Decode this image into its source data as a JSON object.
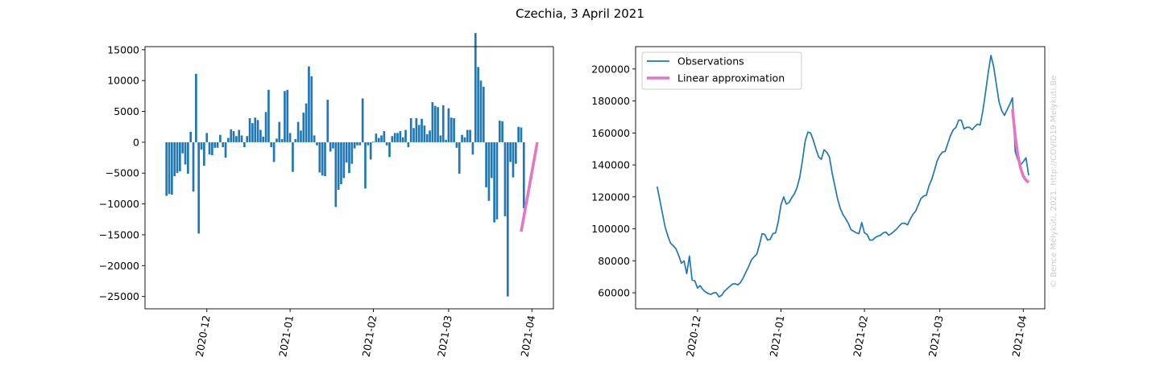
{
  "figure": {
    "title": "Czechia, 3 April 2021",
    "watermark": "© Bence Mélykúti, 2021. http://COVID19.Melykuti.Be"
  },
  "colors": {
    "observations": "#1f77b4",
    "approximation": "#e377c2",
    "watermark": "#cccccc"
  },
  "chart_data": [
    {
      "type": "bar",
      "title": "",
      "xlabel": "",
      "ylabel": "",
      "x_start": "2020-11-16",
      "x_range": [
        "2020-11-08",
        "2021-04-09"
      ],
      "x_ticks": [
        "2020-12",
        "2021-01",
        "2021-02",
        "2021-03",
        "2021-04"
      ],
      "ylim": [
        -27000,
        15500
      ],
      "y_ticks": [
        15000,
        10000,
        5000,
        0,
        -5000,
        -10000,
        -15000,
        -20000,
        -25000
      ],
      "grid": false,
      "series": [
        {
          "name": "",
          "color": "#1f77b4",
          "values": [
            -8700,
            -8400,
            -8500,
            -5500,
            -5000,
            -4700,
            -1800,
            -3600,
            -5100,
            1700,
            -8000,
            11100,
            -14800,
            -1200,
            -3800,
            1500,
            -2000,
            -2100,
            -900,
            -900,
            1200,
            -800,
            -2500,
            700,
            2100,
            1800,
            1000,
            2000,
            1100,
            -800,
            1000,
            3900,
            3100,
            4000,
            3600,
            2000,
            900,
            4900,
            8500,
            -800,
            -3200,
            600,
            3300,
            500,
            8300,
            8500,
            1500,
            -4800,
            500,
            3300,
            1900,
            4800,
            6300,
            12300,
            10700,
            1100,
            -500,
            -4900,
            -5400,
            -5500,
            6900,
            -1500,
            -1000,
            -10500,
            -7700,
            -6800,
            -5800,
            -3300,
            -5000,
            -3500,
            -1000,
            -500,
            -500,
            7100,
            -7500,
            -500,
            -2800,
            100,
            1400,
            700,
            1100,
            1800,
            -500,
            -2400,
            1000,
            1500,
            1500,
            1800,
            800,
            2000,
            -800,
            3900,
            2300,
            3900,
            2800,
            3800,
            2700,
            1300,
            1900,
            6500,
            5900,
            5700,
            1100,
            6000,
            400,
            5500,
            4000,
            3900,
            -900,
            -5100,
            1200,
            800,
            2000,
            2000,
            -2000,
            17700,
            12200,
            10000,
            9000,
            -7300,
            -9500,
            -5800,
            -13000,
            -12500,
            3500,
            3400,
            -12000,
            -25000,
            -3200,
            -5700,
            -3500,
            2500,
            2400,
            -10700
          ]
        },
        {
          "name": "",
          "type": "line",
          "color": "#e377c2",
          "x": [
            "2021-03-28",
            "2021-04-03"
          ],
          "values": [
            -14500,
            0
          ]
        }
      ]
    },
    {
      "type": "line",
      "title": "",
      "xlabel": "",
      "ylabel": "",
      "x_start": "2020-11-16",
      "x_range": [
        "2020-11-08",
        "2021-04-09"
      ],
      "x_ticks": [
        "2020-12",
        "2021-01",
        "2021-02",
        "2021-03",
        "2021-04"
      ],
      "ylim": [
        50000,
        214000
      ],
      "y_ticks": [
        200000,
        180000,
        160000,
        140000,
        120000,
        100000,
        80000,
        60000
      ],
      "grid": false,
      "legend": "top-left",
      "series": [
        {
          "name": "Observations",
          "color": "#1f77b4",
          "values": [
            126500,
            118000,
            109500,
            101000,
            95500,
            91000,
            89500,
            87500,
            83500,
            78500,
            80000,
            72000,
            83000,
            68000,
            67500,
            63000,
            64500,
            62000,
            60500,
            59500,
            59000,
            60000,
            60000,
            57500,
            58500,
            61000,
            62500,
            64000,
            65500,
            65700,
            65000,
            66500,
            69500,
            73000,
            76500,
            80500,
            82500,
            84000,
            90000,
            97000,
            96500,
            93000,
            93500,
            97000,
            97500,
            104500,
            115000,
            120000,
            115500,
            116500,
            119500,
            122000,
            126000,
            132500,
            143000,
            155000,
            160500,
            160000,
            155500,
            150000,
            145000,
            143500,
            149500,
            148000,
            145000,
            135000,
            127000,
            119000,
            113000,
            109000,
            106500,
            103500,
            99500,
            98500,
            97500,
            97000,
            104000,
            97500,
            96500,
            93000,
            93000,
            94500,
            95500,
            96000,
            97500,
            98000,
            96000,
            97000,
            98500,
            100000,
            102000,
            103500,
            103500,
            102500,
            106000,
            109000,
            111000,
            115000,
            119000,
            120500,
            121000,
            127000,
            131000,
            136500,
            142500,
            146000,
            148000,
            148500,
            153500,
            158500,
            162000,
            163500,
            168000,
            168000,
            162500,
            163500,
            163500,
            162000,
            164000,
            165500,
            165000,
            174000,
            185500,
            198000,
            208500,
            201500,
            190500,
            179500,
            174000,
            171000,
            174500,
            178000,
            182000,
            148500,
            143000,
            140000,
            142000,
            144500,
            133500
          ]
        },
        {
          "name": "Linear approximation",
          "color": "#e377c2",
          "x": [
            "2021-03-28",
            "2021-03-29",
            "2021-03-30",
            "2021-03-31",
            "2021-04-01",
            "2021-04-02",
            "2021-04-03"
          ],
          "values": [
            175000,
            158000,
            146000,
            138000,
            133000,
            130500,
            129000
          ]
        }
      ]
    }
  ]
}
